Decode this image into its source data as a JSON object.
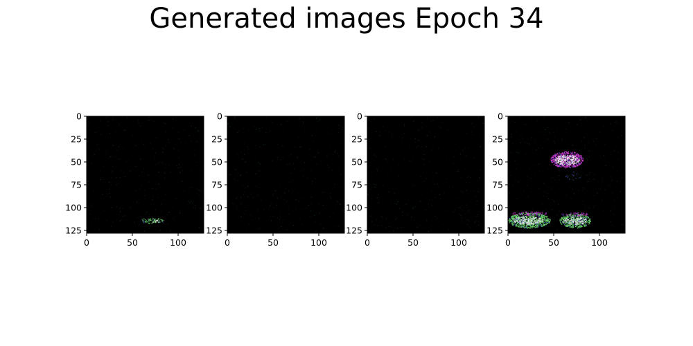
{
  "figure": {
    "title": "Generated images Epoch 34",
    "background": "#ffffff"
  },
  "chart_data": {
    "type": "heatmap",
    "title": "Generated images Epoch 34",
    "colors": {
      "background": "#000000",
      "dim": "#0a120a",
      "green": "#6ee06e",
      "white": "#f0f0f0",
      "magenta": "#e040e0",
      "blue": "#5050d0"
    },
    "panels": [
      {
        "name": "generated-image-1",
        "xlim": [
          0,
          128
        ],
        "ylim": [
          128,
          0
        ],
        "xticks": [
          0,
          50,
          100
        ],
        "yticks": [
          0,
          25,
          50,
          75,
          100,
          125
        ],
        "blobs": [
          {
            "x": [
              58,
              84
            ],
            "y": [
              111,
              117
            ],
            "color": "green",
            "intensity": 0.55
          },
          {
            "x": [
              70,
              80
            ],
            "y": [
              113,
              116
            ],
            "color": "white",
            "intensity": 0.4
          }
        ]
      },
      {
        "name": "generated-image-2",
        "xlim": [
          0,
          128
        ],
        "ylim": [
          128,
          0
        ],
        "xticks": [
          0,
          50,
          100
        ],
        "yticks": [
          0,
          25,
          50,
          75,
          100,
          125
        ],
        "blobs": []
      },
      {
        "name": "generated-image-3",
        "xlim": [
          0,
          128
        ],
        "ylim": [
          128,
          0
        ],
        "xticks": [
          0,
          50,
          100
        ],
        "yticks": [
          0,
          25,
          50,
          75,
          100,
          125
        ],
        "blobs": []
      },
      {
        "name": "generated-image-4",
        "xlim": [
          0,
          128
        ],
        "ylim": [
          128,
          0
        ],
        "xticks": [
          0,
          50,
          100
        ],
        "yticks": [
          0,
          25,
          50,
          75,
          100,
          125
        ],
        "blobs": [
          {
            "x": [
              46,
              82
            ],
            "y": [
              38,
              56
            ],
            "color": "magenta",
            "intensity": 0.85
          },
          {
            "x": [
              50,
              78
            ],
            "y": [
              42,
              53
            ],
            "color": "white",
            "intensity": 0.9
          },
          {
            "x": [
              0,
              46
            ],
            "y": [
              105,
              122
            ],
            "color": "green",
            "intensity": 0.9
          },
          {
            "x": [
              5,
              38
            ],
            "y": [
              109,
              118
            ],
            "color": "white",
            "intensity": 0.75
          },
          {
            "x": [
              2,
              44
            ],
            "y": [
              104,
              108
            ],
            "color": "magenta",
            "intensity": 0.5
          },
          {
            "x": [
              56,
              90
            ],
            "y": [
              106,
              122
            ],
            "color": "green",
            "intensity": 0.85
          },
          {
            "x": [
              60,
              86
            ],
            "y": [
              110,
              118
            ],
            "color": "white",
            "intensity": 0.7
          },
          {
            "x": [
              58,
              88
            ],
            "y": [
              105,
              109
            ],
            "color": "magenta",
            "intensity": 0.45
          },
          {
            "x": [
              62,
              80
            ],
            "y": [
              60,
              70
            ],
            "color": "dim",
            "intensity": 0.5
          }
        ]
      }
    ]
  }
}
